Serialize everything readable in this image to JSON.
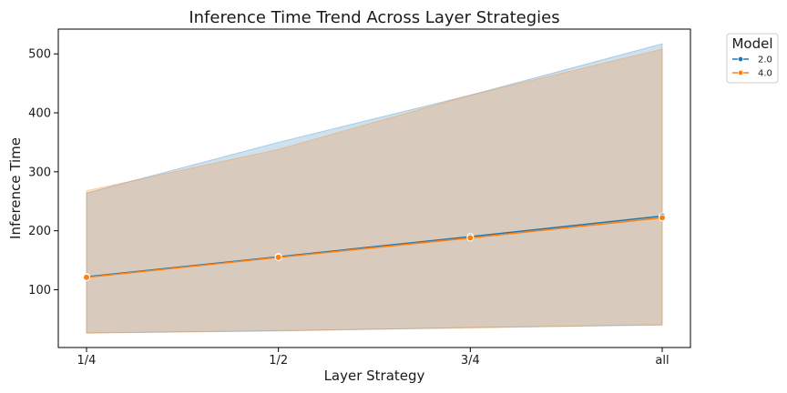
{
  "chart_data": {
    "type": "line",
    "title": "Inference Time Trend Across Layer Strategies",
    "xlabel": "Layer Strategy",
    "ylabel": "Inference Time",
    "categories": [
      "1/4",
      "1/2",
      "3/4",
      "all"
    ],
    "ylim": [
      2,
      542
    ],
    "yticks": [
      100,
      200,
      300,
      400,
      500
    ],
    "grid": false,
    "legend": {
      "title": "Model",
      "placement": "outside-top-right"
    },
    "series": [
      {
        "name": "2.0",
        "color": "#1f77b4",
        "values": [
          122,
          156,
          190,
          225
        ],
        "ci_lower": [
          27,
          30,
          36,
          40
        ],
        "ci_upper": [
          264,
          350,
          430,
          517
        ]
      },
      {
        "name": "4.0",
        "color": "#ff7f0e",
        "values": [
          121,
          155,
          188,
          222
        ],
        "ci_lower": [
          26,
          31,
          35,
          41
        ],
        "ci_upper": [
          268,
          338,
          430,
          508
        ]
      }
    ]
  }
}
